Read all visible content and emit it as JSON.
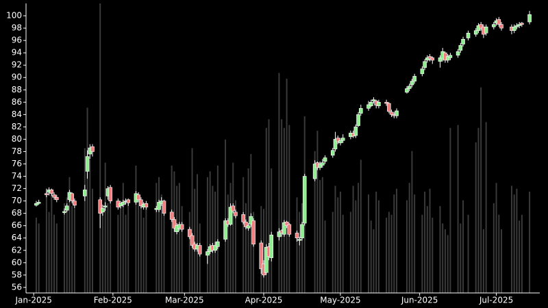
{
  "chart_data": {
    "type": "candlestick",
    "x": [
      "2025-01-02",
      "2025-01-03",
      "2025-01-06",
      "2025-01-07",
      "2025-01-08",
      "2025-01-09",
      "2025-01-10",
      "2025-01-13",
      "2025-01-14",
      "2025-01-15",
      "2025-01-16",
      "2025-01-17",
      "2025-01-21",
      "2025-01-22",
      "2025-01-23",
      "2025-01-24",
      "2025-01-27",
      "2025-01-28",
      "2025-01-29",
      "2025-01-30",
      "2025-01-31",
      "2025-02-03",
      "2025-02-04",
      "2025-02-05",
      "2025-02-06",
      "2025-02-07",
      "2025-02-10",
      "2025-02-11",
      "2025-02-12",
      "2025-02-13",
      "2025-02-14",
      "2025-02-18",
      "2025-02-19",
      "2025-02-20",
      "2025-02-21",
      "2025-02-24",
      "2025-02-25",
      "2025-02-26",
      "2025-02-27",
      "2025-02-28",
      "2025-03-03",
      "2025-03-04",
      "2025-03-05",
      "2025-03-06",
      "2025-03-07",
      "2025-03-10",
      "2025-03-11",
      "2025-03-12",
      "2025-03-13",
      "2025-03-14",
      "2025-03-17",
      "2025-03-18",
      "2025-03-19",
      "2025-03-20",
      "2025-03-21",
      "2025-03-24",
      "2025-03-25",
      "2025-03-26",
      "2025-03-27",
      "2025-03-28",
      "2025-03-31",
      "2025-04-01",
      "2025-04-02",
      "2025-04-03",
      "2025-04-04",
      "2025-04-07",
      "2025-04-08",
      "2025-04-09",
      "2025-04-10",
      "2025-04-11",
      "2025-04-14",
      "2025-04-15",
      "2025-04-16",
      "2025-04-17",
      "2025-04-21",
      "2025-04-22",
      "2025-04-23",
      "2025-04-24",
      "2025-04-25",
      "2025-04-28",
      "2025-04-29",
      "2025-04-30",
      "2025-05-01",
      "2025-05-02",
      "2025-05-05",
      "2025-05-06",
      "2025-05-07",
      "2025-05-08",
      "2025-05-09",
      "2025-05-12",
      "2025-05-13",
      "2025-05-14",
      "2025-05-15",
      "2025-05-16",
      "2025-05-19",
      "2025-05-20",
      "2025-05-21",
      "2025-05-22",
      "2025-05-23",
      "2025-05-27",
      "2025-05-28",
      "2025-05-29",
      "2025-05-30",
      "2025-06-02",
      "2025-06-03",
      "2025-06-04",
      "2025-06-05",
      "2025-06-06",
      "2025-06-09",
      "2025-06-10",
      "2025-06-11",
      "2025-06-12",
      "2025-06-13",
      "2025-06-16",
      "2025-06-17",
      "2025-06-18",
      "2025-06-20",
      "2025-06-23",
      "2025-06-24",
      "2025-06-25",
      "2025-06-26",
      "2025-06-27",
      "2025-06-30",
      "2025-07-01",
      "2025-07-02",
      "2025-07-03",
      "2025-07-07",
      "2025-07-08",
      "2025-07-09",
      "2025-07-10",
      "2025-07-11",
      "2025-07-14"
    ],
    "open": [
      69.3,
      69.6,
      71.2,
      71.4,
      71.8,
      71.0,
      70.6,
      68.1,
      68.5,
      70.2,
      71.2,
      70.0,
      70.8,
      74.8,
      77.6,
      78.8,
      70.2,
      68.2,
      69.0,
      70.8,
      72.2,
      70.0,
      69.2,
      69.4,
      70.0,
      70.2,
      69.8,
      71.0,
      70.2,
      69.0,
      69.6,
      68.6,
      68.6,
      69.6,
      70.0,
      68.2,
      67.0,
      65.0,
      65.6,
      66.2,
      65.4,
      64.4,
      63.0,
      62.2,
      62.8,
      61.2,
      61.8,
      62.8,
      62.0,
      62.6,
      63.8,
      66.8,
      66.2,
      69.2,
      68.2,
      67.8,
      66.6,
      65.6,
      66.2,
      66.8,
      63.2,
      59.8,
      58.4,
      62.6,
      60.8,
      64.2,
      65.2,
      64.6,
      66.6,
      66.2,
      64.8,
      63.6,
      64.0,
      66.4,
      73.6,
      76.2,
      75.4,
      75.8,
      76.4,
      77.4,
      78.4,
      80.2,
      79.4,
      79.8,
      80.4,
      81.0,
      80.6,
      82.2,
      84.2,
      85.0,
      85.4,
      86.2,
      86.2,
      85.4,
      86.0,
      85.8,
      84.4,
      84.0,
      83.8,
      87.6,
      88.2,
      88.8,
      89.4,
      90.6,
      91.6,
      92.8,
      93.4,
      93.2,
      92.6,
      93.0,
      94.0,
      92.8,
      93.2,
      93.6,
      94.4,
      95.4,
      96.4,
      97.0,
      97.6,
      98.6,
      98.2,
      97.2,
      98.2,
      98.8,
      99.4,
      98.6,
      98.2,
      97.6,
      98.2,
      98.4,
      98.8,
      99.0
    ],
    "high": [
      70.0,
      70.2,
      72.0,
      72.2,
      72.0,
      71.4,
      71.0,
      68.8,
      69.6,
      71.8,
      71.4,
      70.4,
      72.6,
      78.2,
      79.2,
      79.2,
      70.6,
      69.4,
      69.8,
      72.4,
      72.6,
      70.4,
      70.0,
      70.2,
      70.4,
      70.4,
      71.6,
      71.4,
      70.6,
      69.8,
      70.0,
      69.2,
      70.2,
      70.6,
      70.2,
      68.6,
      67.4,
      66.4,
      66.6,
      66.6,
      65.8,
      64.8,
      63.4,
      63.2,
      63.2,
      62.2,
      63.0,
      63.2,
      63.4,
      63.8,
      67.2,
      67.2,
      69.6,
      69.6,
      68.6,
      68.2,
      67.0,
      66.4,
      68.0,
      67.2,
      63.6,
      60.4,
      63.0,
      63.2,
      65.0,
      65.6,
      65.4,
      66.9,
      66.8,
      66.4,
      65.2,
      64.2,
      66.6,
      74.4,
      76.6,
      76.4,
      76.4,
      76.8,
      77.4,
      78.6,
      81.2,
      80.6,
      80.2,
      80.8,
      81.4,
      81.4,
      82.4,
      84.4,
      85.6,
      86.2,
      86.4,
      86.8,
      86.4,
      86.4,
      86.4,
      86.0,
      84.8,
      84.4,
      85.0,
      88.6,
      89.0,
      89.8,
      90.6,
      91.8,
      93.0,
      93.6,
      93.8,
      93.4,
      93.6,
      94.8,
      94.2,
      93.8,
      94.0,
      94.6,
      95.6,
      96.6,
      97.6,
      98.0,
      98.8,
      99.0,
      98.6,
      98.6,
      99.0,
      99.6,
      99.8,
      99.0,
      98.6,
      98.6,
      98.8,
      99.0,
      99.0,
      100.8
    ],
    "low": [
      69.1,
      69.4,
      70.6,
      70.9,
      70.8,
      70.2,
      69.8,
      67.8,
      68.2,
      69.8,
      69.6,
      68.8,
      70.0,
      73.6,
      76.8,
      77.2,
      65.6,
      67.6,
      68.4,
      70.2,
      69.6,
      68.6,
      68.8,
      69.0,
      69.4,
      69.2,
      69.4,
      69.8,
      68.8,
      68.6,
      68.6,
      68.2,
      68.2,
      69.2,
      67.6,
      66.6,
      65.0,
      64.6,
      65.2,
      65.0,
      63.8,
      62.4,
      61.8,
      61.8,
      61.0,
      59.8,
      61.4,
      61.6,
      61.6,
      62.2,
      63.4,
      65.8,
      66.0,
      68.0,
      67.2,
      66.2,
      65.4,
      65.2,
      65.8,
      62.6,
      58.2,
      57.6,
      58.0,
      60.4,
      60.2,
      63.6,
      64.2,
      64.2,
      65.6,
      64.2,
      63.4,
      62.8,
      63.6,
      66.0,
      73.2,
      75.0,
      75.0,
      75.4,
      76.0,
      77.0,
      78.0,
      79.2,
      79.0,
      79.4,
      80.0,
      80.2,
      80.2,
      82.0,
      83.8,
      84.6,
      85.2,
      85.8,
      85.0,
      85.0,
      85.4,
      84.2,
      83.6,
      83.4,
      83.4,
      87.4,
      87.8,
      88.4,
      89.0,
      90.2,
      91.2,
      92.4,
      92.6,
      92.2,
      91.6,
      92.6,
      92.4,
      92.4,
      92.8,
      93.2,
      94.0,
      95.0,
      96.0,
      96.6,
      97.2,
      97.6,
      96.4,
      96.8,
      97.8,
      98.4,
      98.2,
      97.6,
      97.0,
      97.2,
      97.8,
      98.0,
      98.2,
      98.6
    ],
    "close": [
      69.6,
      69.8,
      71.0,
      71.8,
      71.2,
      70.6,
      70.2,
      68.3,
      69.2,
      71.4,
      70.0,
      69.3,
      71.8,
      77.2,
      78.6,
      78.0,
      68.0,
      68.8,
      69.2,
      72.0,
      70.0,
      69.0,
      69.6,
      69.8,
      70.0,
      69.7,
      71.2,
      70.2,
      69.2,
      69.5,
      69.0,
      68.8,
      69.8,
      70.0,
      68.0,
      67.0,
      65.6,
      66.0,
      66.2,
      65.4,
      64.2,
      62.8,
      62.2,
      62.8,
      61.4,
      61.8,
      62.6,
      62.0,
      62.8,
      63.4,
      66.8,
      66.2,
      69.0,
      68.4,
      67.6,
      66.6,
      65.8,
      66.0,
      67.5,
      63.0,
      59.0,
      58.0,
      62.5,
      61.0,
      64.5,
      65.0,
      64.8,
      66.5,
      66.0,
      64.6,
      64.0,
      63.8,
      66.2,
      74.0,
      76.0,
      75.4,
      76.0,
      76.2,
      77.0,
      78.2,
      80.0,
      79.6,
      79.8,
      80.2,
      81.0,
      80.5,
      82.0,
      84.0,
      85.0,
      85.6,
      86.0,
      86.4,
      85.5,
      86.0,
      85.8,
      84.5,
      84.0,
      83.8,
      84.6,
      88.2,
      88.6,
      89.4,
      90.2,
      91.4,
      92.6,
      93.2,
      93.0,
      92.8,
      93.2,
      94.2,
      92.8,
      93.4,
      93.6,
      94.2,
      95.2,
      96.2,
      97.2,
      97.6,
      98.4,
      98.0,
      97.0,
      98.2,
      98.6,
      99.2,
      98.6,
      98.0,
      97.6,
      98.2,
      98.4,
      98.6,
      98.6,
      100.2
    ],
    "volume": [
      26,
      24,
      35,
      28,
      36,
      27,
      24,
      31,
      33,
      40,
      30,
      29,
      50,
      64,
      46,
      36,
      100,
      29,
      45,
      31,
      33,
      27,
      30,
      38,
      27,
      31,
      44,
      34,
      31,
      26,
      29,
      38,
      40,
      34,
      29,
      44,
      42,
      37,
      38,
      30,
      28,
      50,
      36,
      41,
      24,
      40,
      42,
      37,
      35,
      44,
      53,
      34,
      38,
      45,
      32,
      40,
      31,
      43,
      48,
      28,
      30,
      29,
      57,
      60,
      43,
      76,
      60,
      57,
      74,
      58,
      33,
      28,
      31,
      61,
      49,
      56,
      39,
      40,
      25,
      28,
      37,
      33,
      35,
      27,
      28,
      37,
      32,
      38,
      46,
      34,
      25,
      22,
      35,
      32,
      26,
      28,
      27,
      34,
      36,
      32,
      38,
      49,
      34,
      27,
      35,
      30,
      36,
      26,
      30,
      24,
      22,
      20,
      57,
      58,
      24,
      32,
      27,
      52,
      57,
      71,
      22,
      59,
      31,
      38,
      27,
      22,
      37,
      34,
      36,
      25,
      27,
      35
    ],
    "up_color": "#90ee90",
    "down_color": "#f08080",
    "volume_color": "#3a3a3a",
    "xlim": [
      "2024-12-29",
      "2025-07-18"
    ],
    "xticks": [
      {
        "value": "2025-01-01",
        "label": "Jan-2025"
      },
      {
        "value": "2025-02-01",
        "label": "Feb-2025"
      },
      {
        "value": "2025-03-01",
        "label": "Mar-2025"
      },
      {
        "value": "2025-04-01",
        "label": "Apr-2025"
      },
      {
        "value": "2025-05-01",
        "label": "May-2025"
      },
      {
        "value": "2025-06-01",
        "label": "Jun-2025"
      },
      {
        "value": "2025-07-01",
        "label": "Jul-2025"
      }
    ],
    "ylim": [
      55.1,
      102
    ],
    "yticks": [
      56,
      58,
      60,
      62,
      64,
      66,
      68,
      70,
      72,
      74,
      76,
      78,
      80,
      82,
      84,
      86,
      88,
      90,
      92,
      94,
      96,
      98,
      100
    ],
    "y2lim": [
      0,
      100
    ]
  }
}
